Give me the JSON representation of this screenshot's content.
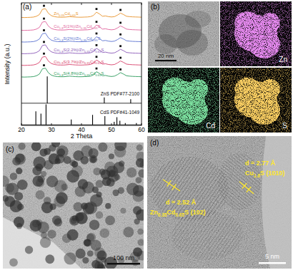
{
  "chart_data": {
    "type": "line",
    "xlabel": "2 Theta",
    "ylabel": "Intensity (a.u.)",
    "xlim": [
      20,
      60
    ],
    "xticks": [
      20,
      30,
      40,
      50,
      60
    ],
    "ylim": [
      0,
      105
    ],
    "tick_labels": "x",
    "x": [
      20,
      21,
      22,
      23,
      24,
      25,
      26,
      27,
      28,
      29,
      30,
      31,
      32,
      33,
      34,
      35,
      36,
      37,
      38,
      39,
      40,
      41,
      42,
      43,
      44,
      45,
      46,
      47,
      48,
      49,
      50,
      51,
      52,
      53,
      54,
      55,
      56,
      57,
      58,
      59,
      60
    ],
    "series": [
      {
        "name": "Zn0.35Cd0.65S",
        "type": "line",
        "color": "#e8922a",
        "marker": "square",
        "peak_x": [
          27.5,
          45,
          53
        ],
        "values": [
          92.5,
          92.4,
          92.5,
          92.6,
          92.8,
          93.5,
          95,
          99.5,
          100,
          96,
          94,
          93.2,
          92.8,
          92.7,
          92.7,
          92.9,
          93.2,
          93,
          92.8,
          92.7,
          92.7,
          92.8,
          92.9,
          93.2,
          94.2,
          97,
          95.5,
          93.5,
          93.8,
          93.2,
          92.9,
          93.2,
          94.5,
          96.2,
          95,
          93.5,
          93.2,
          93,
          92.9,
          92.8,
          92.7
        ]
      },
      {
        "name": "Cu1.8S(1%)/Zn0.35Cd0.65S",
        "type": "line",
        "color": "#e0609a",
        "marker": "square",
        "peak_x": [
          27.5,
          45,
          53
        ],
        "values": [
          81.5,
          81.4,
          81.5,
          81.6,
          81.8,
          82.5,
          84,
          88.5,
          89,
          85,
          83,
          82.2,
          81.8,
          81.7,
          81.7,
          81.9,
          82.2,
          82,
          81.8,
          81.7,
          81.7,
          81.8,
          81.9,
          82.2,
          83.2,
          86,
          84.5,
          82.5,
          82.8,
          82.2,
          81.9,
          82.2,
          83.5,
          85.2,
          84,
          82.5,
          82.2,
          82,
          81.9,
          81.8,
          81.7
        ]
      },
      {
        "name": "Cu1.8S(2%)/Zn0.35Cd0.65S",
        "type": "line",
        "color": "#5a72d0",
        "marker": "square",
        "peak_x": [
          27.5,
          45,
          53
        ],
        "values": [
          71.5,
          71.4,
          71.5,
          71.6,
          71.8,
          72.5,
          74,
          78.5,
          79,
          75,
          73,
          72.2,
          71.8,
          71.7,
          71.7,
          71.9,
          72.2,
          72,
          71.8,
          71.7,
          71.7,
          71.8,
          71.9,
          72.2,
          73.2,
          76,
          74.5,
          72.5,
          72.8,
          72.2,
          71.9,
          72.2,
          73.5,
          75.2,
          74,
          72.5,
          72.2,
          72,
          71.9,
          71.8,
          71.7
        ]
      },
      {
        "name": "Cu1.8S(2.2%)/Zn0.35Cd0.65S",
        "type": "line",
        "color": "#8a58b8",
        "marker": "square",
        "peak_x": [
          27.5,
          45,
          53
        ],
        "values": [
          61.5,
          61.4,
          61.5,
          61.6,
          61.8,
          62.5,
          64,
          68.5,
          69,
          65,
          63,
          62.2,
          61.8,
          61.7,
          61.7,
          61.9,
          62.2,
          62,
          61.8,
          61.7,
          61.7,
          61.8,
          61.9,
          62.2,
          63.2,
          66,
          64.5,
          62.5,
          62.8,
          62.2,
          61.9,
          62.2,
          63.5,
          65.2,
          64,
          62.5,
          62.2,
          62,
          61.9,
          61.8,
          61.7
        ]
      },
      {
        "name": "Cu1.8S(3.7%)/Zn0.35Cd0.65S",
        "type": "line",
        "color": "#d8406a",
        "marker": "square",
        "peak_x": [
          27.5,
          45,
          53
        ],
        "values": [
          51.5,
          51.4,
          51.5,
          51.6,
          51.8,
          52.5,
          54,
          58.5,
          59,
          55,
          53,
          52.2,
          51.8,
          51.7,
          51.7,
          51.9,
          52.2,
          52,
          51.8,
          51.7,
          51.7,
          51.8,
          51.9,
          52.2,
          53.2,
          56,
          54.5,
          52.5,
          52.8,
          52.2,
          51.9,
          52.2,
          53.5,
          55.2,
          54,
          52.5,
          52.2,
          52,
          51.9,
          51.8,
          51.7
        ]
      },
      {
        "name": "Cu1.8S(4.8%)/Zn0.35Cd0.65S",
        "type": "line",
        "color": "#2a9a5a",
        "marker": "square",
        "peak_x": [
          27.5,
          45,
          53
        ],
        "values": [
          41.5,
          41.4,
          41.5,
          41.6,
          41.8,
          42.5,
          44,
          48.5,
          49,
          45,
          43,
          42.2,
          41.8,
          41.7,
          41.7,
          41.9,
          42.2,
          42,
          41.8,
          41.7,
          41.7,
          41.8,
          41.9,
          42.2,
          43.2,
          46,
          44.5,
          42.5,
          42.8,
          42.2,
          41.9,
          42.2,
          43.5,
          45.2,
          44,
          42.5,
          42.2,
          42,
          41.9,
          41.8,
          41.7
        ]
      },
      {
        "name": "ZnS PDF#77-2100",
        "type": "stick",
        "color": "#000000",
        "baseline": 19,
        "x": [
          28.6,
          47.6,
          56.4
        ],
        "values": [
          42,
          24,
          22.5
        ]
      },
      {
        "name": "CdS PDF#41-1049",
        "type": "stick",
        "color": "#000000",
        "baseline": 0.5,
        "x": [
          24.8,
          26.5,
          28.2,
          36.6,
          43.7,
          47.8,
          50.9,
          51.8,
          52.8,
          54.6,
          58.3
        ],
        "values": [
          12,
          10,
          18,
          5,
          9,
          8,
          3,
          7,
          4,
          2,
          2
        ]
      }
    ]
  },
  "panel_labels": [
    "(a)",
    "(b)",
    "(c)",
    "(d)"
  ],
  "eds_mapping": {
    "scale_bar": "20 nm",
    "elements": [
      "Zn",
      "Cd",
      "S"
    ]
  },
  "tem_image": {
    "scale_bar": "100 nm"
  },
  "hrtem_image": {
    "scale_bar": "5 nm",
    "fringes": [
      {
        "spacing": "d = 2.77 Å",
        "phase": "Cu1.8S (1010)"
      },
      {
        "spacing": "d = 2.52 Å",
        "phase": "Zn0.35Cd0.65S (102)"
      }
    ]
  }
}
